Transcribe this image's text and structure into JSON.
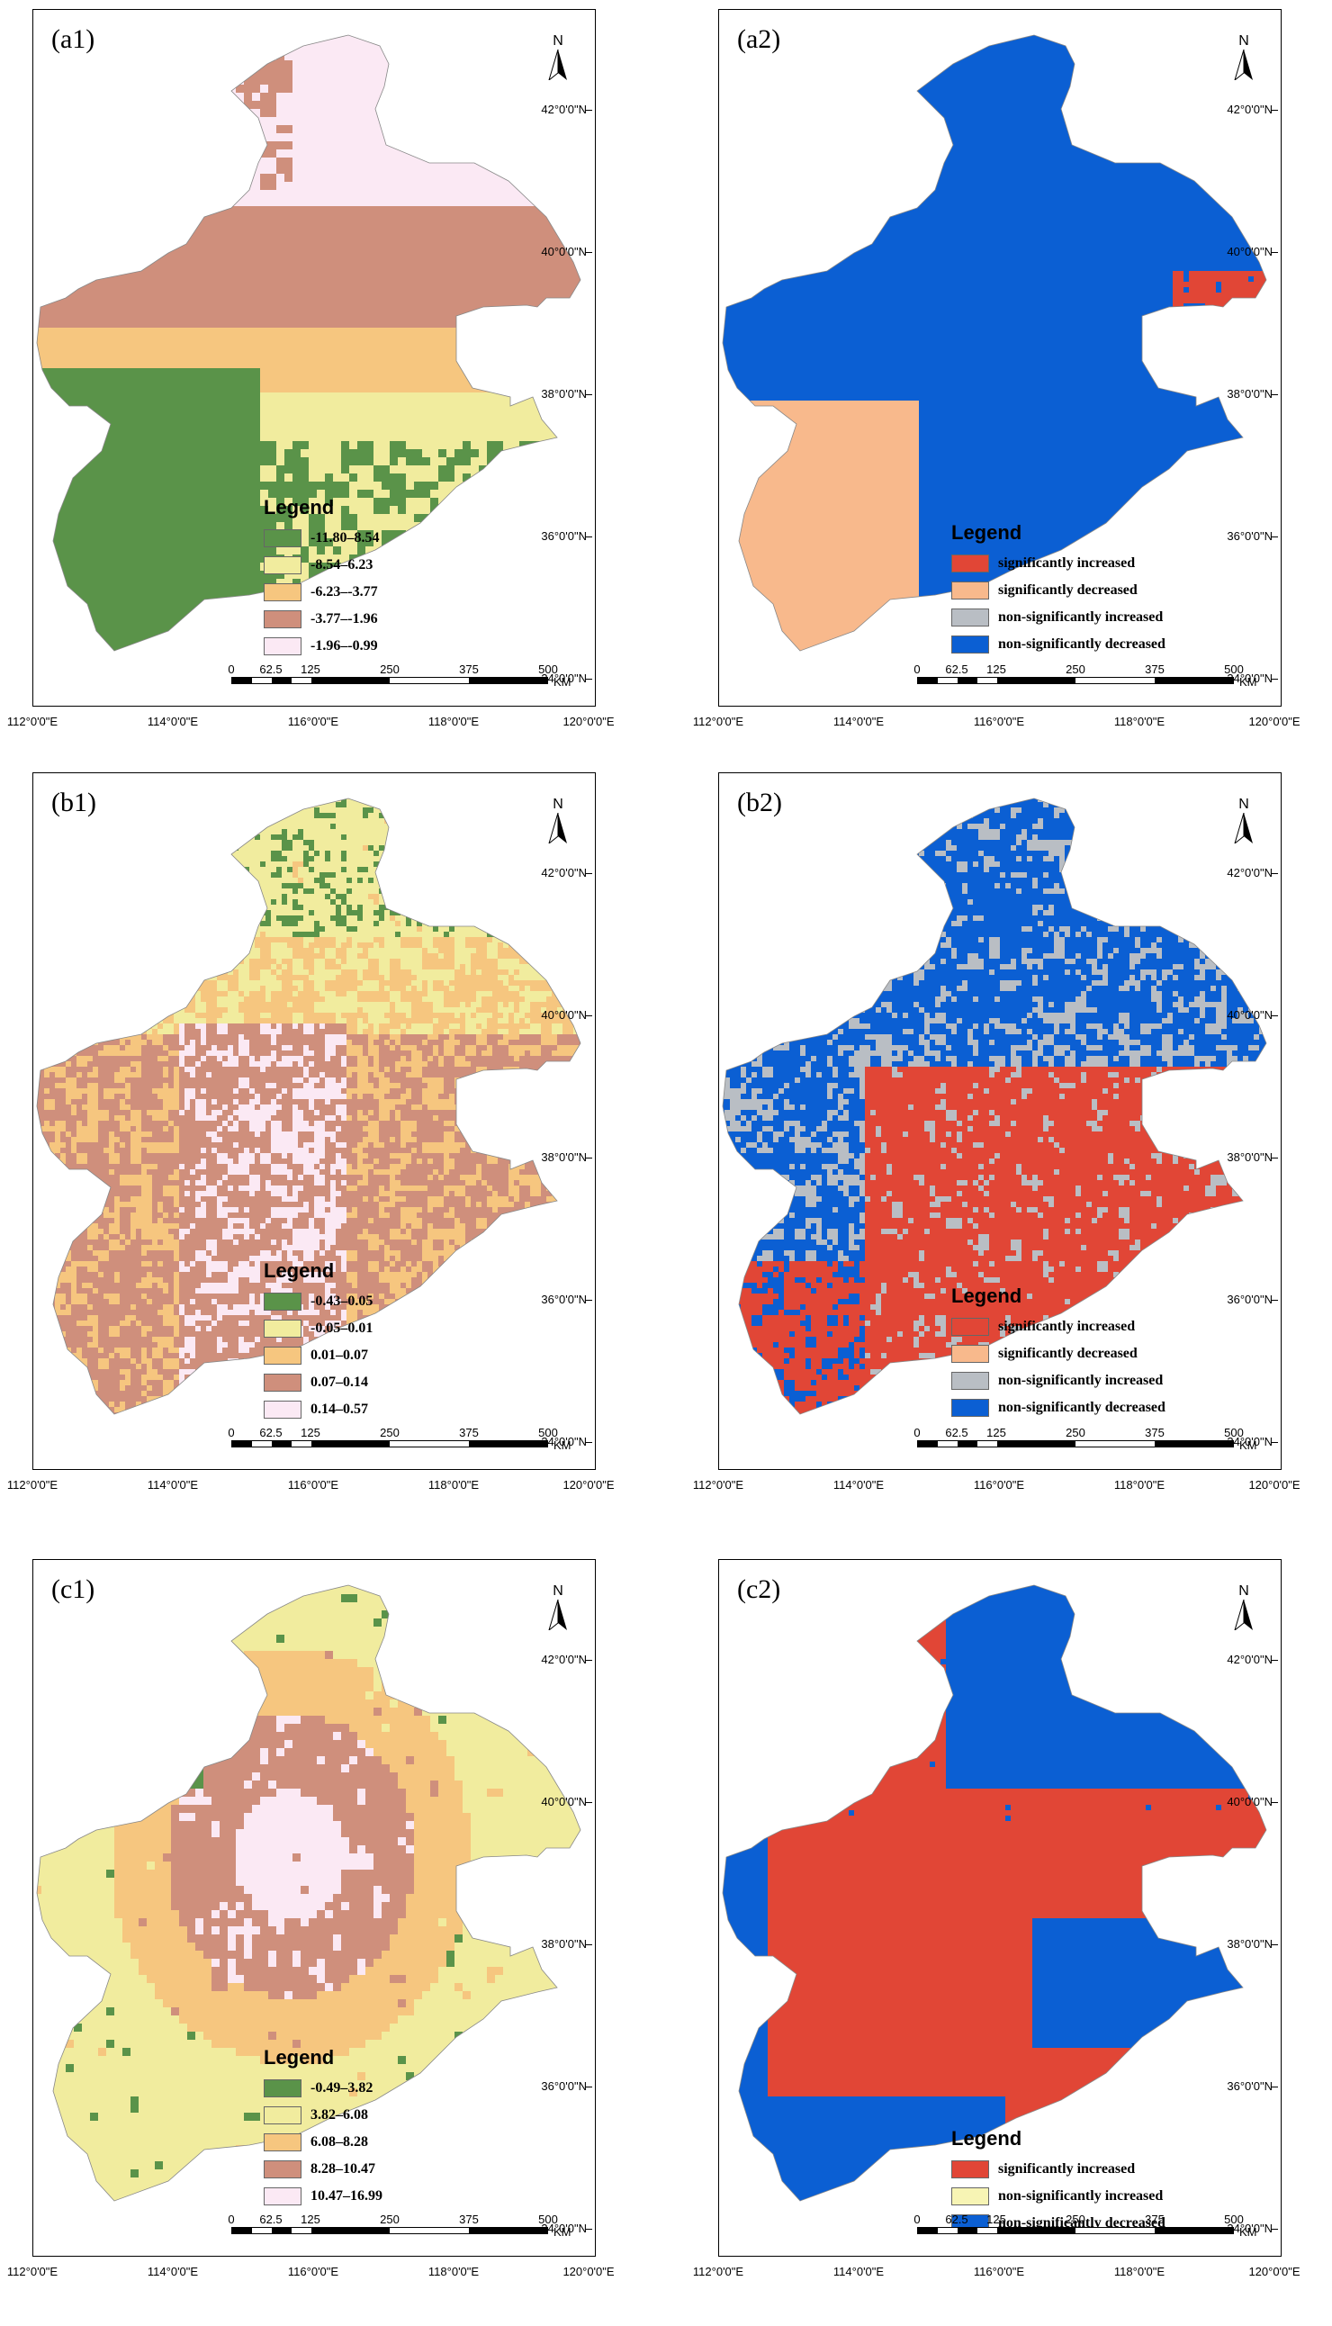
{
  "lat_labels": [
    "42°0'0\"N",
    "40°0'0\"N",
    "38°0'0\"N",
    "36°0'0\"N",
    "34°0'0\"N"
  ],
  "lon_labels": [
    "112°0'0\"E",
    "114°0'0\"E",
    "116°0'0\"E",
    "118°0'0\"E",
    "120°0'0\"E"
  ],
  "north_label": "N",
  "scale": {
    "ticks": [
      "0",
      "62.5",
      "125",
      "250",
      "375",
      "500"
    ],
    "unit": "KM"
  },
  "legend_title": "Legend",
  "panels": [
    {
      "id": "a1",
      "label": "(a1)",
      "type": "continuous",
      "legend": [
        {
          "label": "-11.80–8.54",
          "color": "#5a9349"
        },
        {
          "label": "-8.54–6.23",
          "color": "#f1ec9e"
        },
        {
          "label": "-6.23–-3.77",
          "color": "#f6c67f"
        },
        {
          "label": "-3.77–-1.96",
          "color": "#cf8f7c"
        },
        {
          "label": "-1.96–-0.99",
          "color": "#fbe9f4"
        }
      ]
    },
    {
      "id": "a2",
      "label": "(a2)",
      "type": "trend",
      "legend": [
        {
          "label": "significantly increased",
          "color": "#e14636"
        },
        {
          "label": "significantly decreased",
          "color": "#f8b98c"
        },
        {
          "label": "non-significantly increased",
          "color": "#b9bec4"
        },
        {
          "label": "non-significantly decreased",
          "color": "#0b5fd3"
        }
      ]
    },
    {
      "id": "b1",
      "label": "(b1)",
      "type": "continuous",
      "legend": [
        {
          "label": "-0.43–0.05",
          "color": "#5a9349"
        },
        {
          "label": "-0.05–0.01",
          "color": "#f1ec9e"
        },
        {
          "label": "0.01–0.07",
          "color": "#f6c67f"
        },
        {
          "label": "0.07–0.14",
          "color": "#cf8f7c"
        },
        {
          "label": "0.14–0.57",
          "color": "#fbe9f4"
        }
      ]
    },
    {
      "id": "b2",
      "label": "(b2)",
      "type": "trend",
      "legend": [
        {
          "label": "significantly increased",
          "color": "#e14636"
        },
        {
          "label": "significantly decreased",
          "color": "#f8b98c"
        },
        {
          "label": "non-significantly increased",
          "color": "#b9bec4"
        },
        {
          "label": "non-significantly decreased",
          "color": "#0b5fd3"
        }
      ]
    },
    {
      "id": "c1",
      "label": "(c1)",
      "type": "continuous",
      "legend": [
        {
          "label": "-0.49–3.82",
          "color": "#5a9349"
        },
        {
          "label": "3.82–6.08",
          "color": "#f1ec9e"
        },
        {
          "label": "6.08–8.28",
          "color": "#f6c67f"
        },
        {
          "label": "8.28–10.47",
          "color": "#cf8f7c"
        },
        {
          "label": "10.47–16.99",
          "color": "#fbe9f4"
        }
      ]
    },
    {
      "id": "c2",
      "label": "(c2)",
      "type": "trend",
      "legend": [
        {
          "label": "significantly increased",
          "color": "#e14636"
        },
        {
          "label": "non-significantly increased",
          "color": "#f7f4b4"
        },
        {
          "label": "non-significantly decreased",
          "color": "#0b5fd3"
        }
      ]
    }
  ]
}
